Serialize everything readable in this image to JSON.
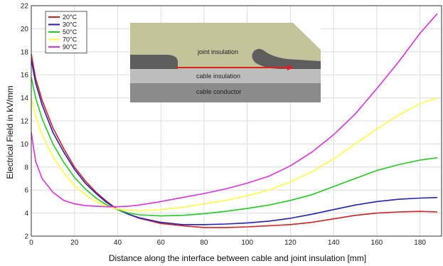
{
  "chart_data": {
    "type": "line",
    "xlabel": "Distance along the interface between cable and joint insulation [mm]",
    "ylabel": "Electrical Field in kV/mm",
    "xlim": [
      0,
      190
    ],
    "ylim": [
      2,
      22
    ],
    "xticks": [
      0,
      20,
      40,
      60,
      80,
      100,
      120,
      140,
      160,
      180
    ],
    "yticks": [
      2,
      4,
      6,
      8,
      10,
      12,
      14,
      16,
      18,
      20,
      22
    ],
    "grid": true,
    "legend_position": "top-left",
    "series": [
      {
        "name": "20°C",
        "color": "#d62020",
        "x": [
          0,
          2,
          5,
          10,
          15,
          20,
          25,
          30,
          35,
          40,
          45,
          50,
          60,
          70,
          80,
          90,
          100,
          110,
          120,
          130,
          140,
          150,
          160,
          170,
          180,
          188
        ],
        "y": [
          17.8,
          15.7,
          13.8,
          11.4,
          9.6,
          8.0,
          6.8,
          5.8,
          5.0,
          4.3,
          3.9,
          3.55,
          3.1,
          2.9,
          2.75,
          2.75,
          2.8,
          2.9,
          3.0,
          3.2,
          3.5,
          3.8,
          4.0,
          4.1,
          4.15,
          4.1
        ]
      },
      {
        "name": "30°C",
        "color": "#2020c0",
        "x": [
          0,
          2,
          5,
          10,
          15,
          20,
          25,
          30,
          35,
          40,
          45,
          50,
          60,
          70,
          80,
          90,
          100,
          110,
          120,
          130,
          140,
          150,
          160,
          170,
          180,
          188
        ],
        "y": [
          17.3,
          15.3,
          13.4,
          11.0,
          9.3,
          7.8,
          6.6,
          5.7,
          4.9,
          4.3,
          3.9,
          3.6,
          3.2,
          3.0,
          3.0,
          3.05,
          3.15,
          3.3,
          3.55,
          3.9,
          4.3,
          4.7,
          5.0,
          5.2,
          5.3,
          5.35
        ]
      },
      {
        "name": "50°C",
        "color": "#22cc22",
        "x": [
          0,
          2,
          5,
          10,
          15,
          20,
          25,
          30,
          35,
          40,
          45,
          50,
          60,
          70,
          80,
          90,
          100,
          110,
          120,
          130,
          140,
          150,
          160,
          170,
          180,
          188
        ],
        "y": [
          15.8,
          14.0,
          12.2,
          10.0,
          8.4,
          7.1,
          6.1,
          5.3,
          4.7,
          4.3,
          4.0,
          3.85,
          3.75,
          3.8,
          3.95,
          4.15,
          4.4,
          4.7,
          5.1,
          5.6,
          6.3,
          7.0,
          7.7,
          8.2,
          8.6,
          8.8
        ]
      },
      {
        "name": "70°C",
        "color": "#ffff44",
        "x": [
          0,
          2,
          5,
          10,
          15,
          20,
          25,
          30,
          35,
          40,
          45,
          50,
          60,
          70,
          80,
          90,
          100,
          110,
          120,
          130,
          140,
          150,
          160,
          170,
          180,
          188
        ],
        "y": [
          14.0,
          12.4,
          10.8,
          8.9,
          7.5,
          6.4,
          5.6,
          5.0,
          4.6,
          4.35,
          4.25,
          4.2,
          4.3,
          4.5,
          4.8,
          5.1,
          5.5,
          6.0,
          6.7,
          7.6,
          8.7,
          10.0,
          11.3,
          12.5,
          13.5,
          14.0
        ]
      },
      {
        "name": "90°C",
        "color": "#e030e0",
        "x": [
          0,
          2,
          5,
          10,
          15,
          20,
          25,
          30,
          35,
          40,
          45,
          50,
          60,
          70,
          80,
          90,
          100,
          110,
          120,
          130,
          140,
          150,
          160,
          170,
          180,
          188
        ],
        "y": [
          11.0,
          8.5,
          7.0,
          5.8,
          5.1,
          4.8,
          4.65,
          4.6,
          4.55,
          4.55,
          4.6,
          4.7,
          5.0,
          5.35,
          5.7,
          6.1,
          6.6,
          7.2,
          8.1,
          9.3,
          10.8,
          12.6,
          14.8,
          17.1,
          19.6,
          21.3
        ]
      }
    ],
    "inset": {
      "labels": [
        "joint insulation",
        "cable insulation",
        "cable conductor"
      ]
    }
  }
}
